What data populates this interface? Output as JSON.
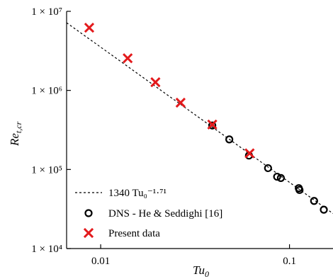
{
  "chart_data": {
    "type": "scatter",
    "xscale": "log",
    "yscale": "log",
    "xlim": [
      0.0066,
      0.17
    ],
    "ylim": [
      10000,
      10000000
    ],
    "xlabel": "Tu",
    "xlabel_sub": "0",
    "ylabel": "Re",
    "ylabel_sub": "t,cr",
    "x_ticks": [
      {
        "value": 0.01,
        "label": "0.01"
      },
      {
        "value": 0.1,
        "label": "0.1"
      }
    ],
    "y_ticks": [
      {
        "value": 10000,
        "label": "1 × 10⁴"
      },
      {
        "value": 100000,
        "label": "1 × 10⁵"
      },
      {
        "value": 1000000,
        "label": "1 × 10⁶"
      },
      {
        "value": 10000000,
        "label": "1 × 10⁷"
      }
    ],
    "grid": false,
    "legend_position": "bottom-left",
    "fit_line": {
      "name": "1340 Tu₀⁻¹·⁷¹",
      "coefficient": 1340,
      "exponent": -1.71,
      "style": "dashed",
      "color": "#000000"
    },
    "series": [
      {
        "name": "DNS - He & Seddighi [16]",
        "marker": "circle",
        "color": "#000000",
        "points": [
          {
            "x": 0.039,
            "y": 360000
          },
          {
            "x": 0.048,
            "y": 240000
          },
          {
            "x": 0.061,
            "y": 150000
          },
          {
            "x": 0.077,
            "y": 104000
          },
          {
            "x": 0.086,
            "y": 81000
          },
          {
            "x": 0.09,
            "y": 78000
          },
          {
            "x": 0.112,
            "y": 58000
          },
          {
            "x": 0.113,
            "y": 55000
          },
          {
            "x": 0.135,
            "y": 40000
          },
          {
            "x": 0.152,
            "y": 31000
          }
        ]
      },
      {
        "name": "Present data",
        "marker": "x",
        "color": "#e31a1c",
        "points": [
          {
            "x": 0.0087,
            "y": 6200000
          },
          {
            "x": 0.0139,
            "y": 2550000
          },
          {
            "x": 0.0195,
            "y": 1270000
          },
          {
            "x": 0.0265,
            "y": 700000
          },
          {
            "x": 0.039,
            "y": 370000
          },
          {
            "x": 0.0615,
            "y": 160000
          }
        ]
      }
    ]
  }
}
